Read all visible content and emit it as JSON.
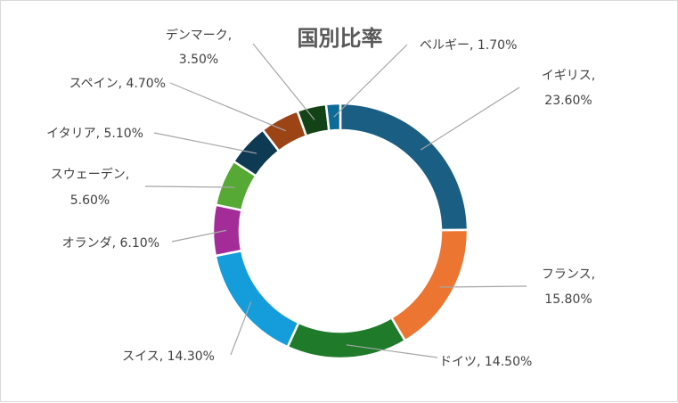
{
  "chart_data": {
    "type": "pie",
    "donut": true,
    "title": "国別比率",
    "legend": "none",
    "slices": [
      {
        "name": "イギリス",
        "value": 23.6,
        "label": "23.60%",
        "color": "#1b5e83"
      },
      {
        "name": "フランス",
        "value": 15.8,
        "label": "15.80%",
        "color": "#ec7532"
      },
      {
        "name": "ドイツ",
        "value": 14.5,
        "label": "14.50%",
        "color": "#1f7a2a"
      },
      {
        "name": "スイス",
        "value": 14.3,
        "label": "14.30%",
        "color": "#149cdb"
      },
      {
        "name": "オランダ",
        "value": 6.1,
        "label": "6.10%",
        "color": "#a42c99"
      },
      {
        "name": "スウェーデン",
        "value": 5.6,
        "label": "5.60%",
        "color": "#57a935"
      },
      {
        "name": "イタリア",
        "value": 5.1,
        "label": "5.10%",
        "color": "#0f3a54"
      },
      {
        "name": "スペイン",
        "value": 4.7,
        "label": "4.70%",
        "color": "#9c4416"
      },
      {
        "name": "デンマーク",
        "value": 3.5,
        "label": "3.50%",
        "color": "#124215"
      },
      {
        "name": "ベルギー",
        "value": 1.7,
        "label": "1.70%",
        "color": "#0c6b97"
      }
    ]
  }
}
